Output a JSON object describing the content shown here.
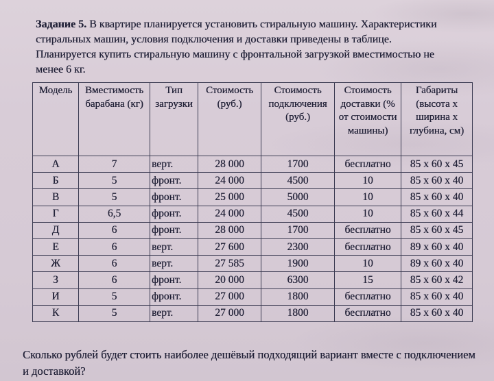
{
  "page": {
    "task_label": "Задание 5.",
    "task_text": " В квартире планируется установить стиральную машину. Характеристики стиральных машин, условия подключения и доставки приведены в таблице. Планируется купить стиральную машину с фронтальной загрузкой вместимостью не менее 6 кг.",
    "question_text": "Сколько рублей будет стоить наиболее дешёвый подходящий вариант вместе с подключением и доставкой?"
  },
  "table": {
    "headers": [
      "Модель",
      "Вместимость барабана (кг)",
      "Тип загрузки",
      "Стоимость (руб.)",
      "Стоимость подключения (руб.)",
      "Стоимость доставки (% от стоимости машины)",
      "Габариты (высота x ширина x глубина, см)"
    ],
    "rows": [
      [
        "А",
        "7",
        "верт.",
        "28 000",
        "1700",
        "бесплатно",
        "85 x 60 x 45"
      ],
      [
        "Б",
        "5",
        "фронт.",
        "24 000",
        "4500",
        "10",
        "85 x 60 x 40"
      ],
      [
        "В",
        "5",
        "фронт.",
        "25 000",
        "5000",
        "10",
        "85 x 60 x 40"
      ],
      [
        "Г",
        "6,5",
        "фронт.",
        "24 000",
        "4500",
        "10",
        "85 x 60 x 44"
      ],
      [
        "Д",
        "6",
        "фронт.",
        "28 000",
        "1700",
        "бесплатно",
        "85 x 60 x 45"
      ],
      [
        "Е",
        "6",
        "верт.",
        "27 600",
        "2300",
        "бесплатно",
        "89 x 60 x 40"
      ],
      [
        "Ж",
        "6",
        "верт.",
        "27 585",
        "1900",
        "10",
        "89 x 60 x 40"
      ],
      [
        "З",
        "6",
        "фронт.",
        "20 000",
        "6300",
        "15",
        "85 x 60 x 42"
      ],
      [
        "И",
        "5",
        "фронт.",
        "27 000",
        "1800",
        "бесплатно",
        "85 x 60 x 40"
      ],
      [
        "К",
        "5",
        "верт.",
        "27 000",
        "1800",
        "бесплатно",
        "85 x 60 x 40"
      ]
    ]
  },
  "colors": {
    "paper": "#d8ccd7",
    "ink": "#222238",
    "table_border": "#3b3b52"
  }
}
